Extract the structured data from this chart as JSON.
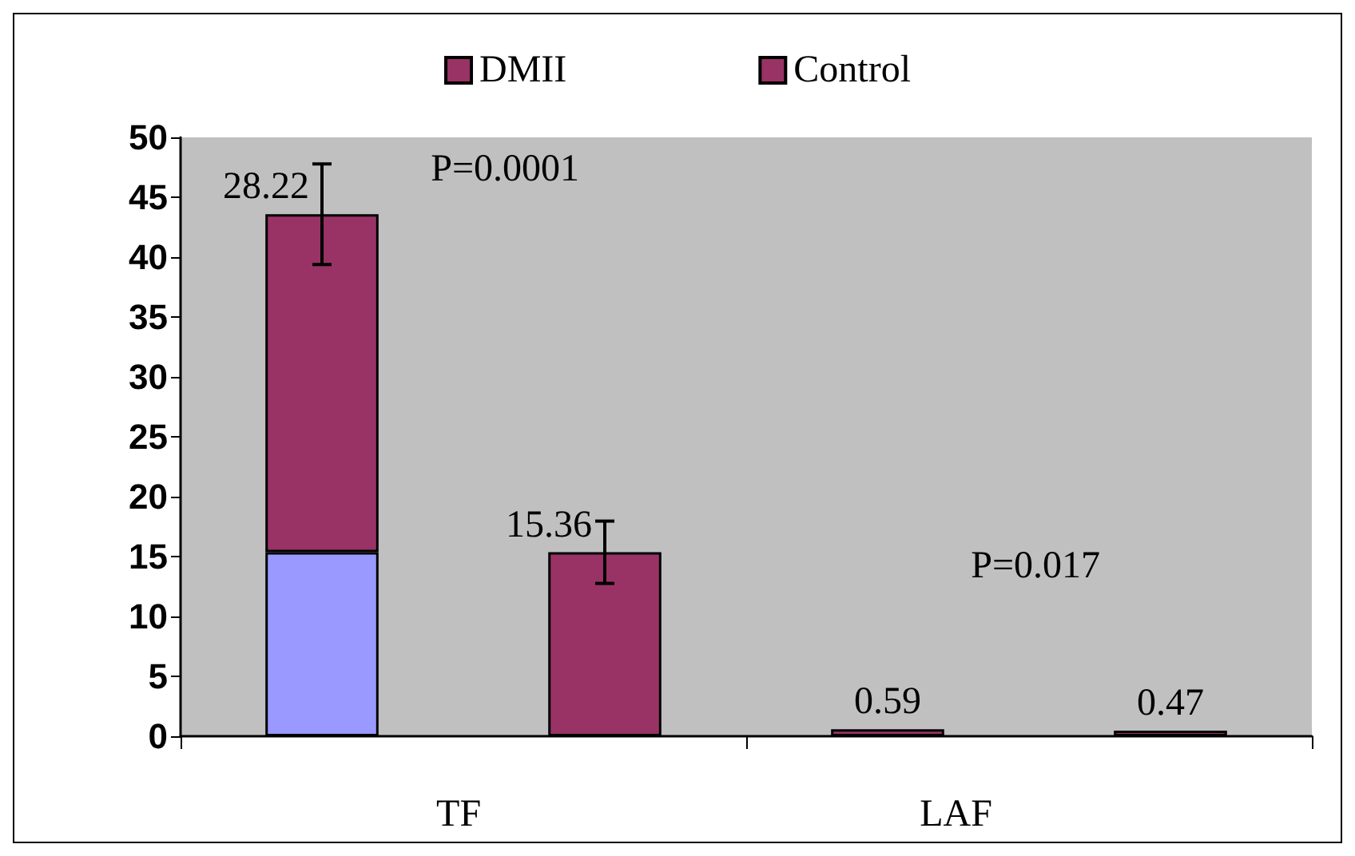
{
  "chart_data": {
    "type": "bar",
    "categories": [
      null,
      null,
      null,
      null
    ],
    "stacked": true,
    "series": [
      {
        "color": "#9999ff",
        "values": [
          15.36,
          null,
          null,
          null
        ]
      },
      {
        "name": "DMII",
        "color": "#993366",
        "values": [
          28.22,
          null,
          0.59,
          null
        ],
        "errors": [
          4.2,
          null,
          null,
          null
        ],
        "value_labels": [
          "28.22",
          null,
          "0.59",
          null
        ]
      },
      {
        "name": "Control",
        "color": "#993366",
        "values": [
          null,
          15.36,
          null,
          0.47
        ],
        "errors": [
          null,
          2.6,
          null,
          null
        ],
        "value_labels": [
          null,
          "15.36",
          null,
          "0.47"
        ]
      }
    ],
    "ylim": [
      0,
      50
    ],
    "yticks": [
      0,
      5,
      10,
      15,
      20,
      25,
      30,
      35,
      40,
      45,
      50
    ],
    "grid": false,
    "legend": "top",
    "annotations": [
      "P=0.0001",
      "P=0.017",
      "TF",
      "LAF"
    ]
  }
}
